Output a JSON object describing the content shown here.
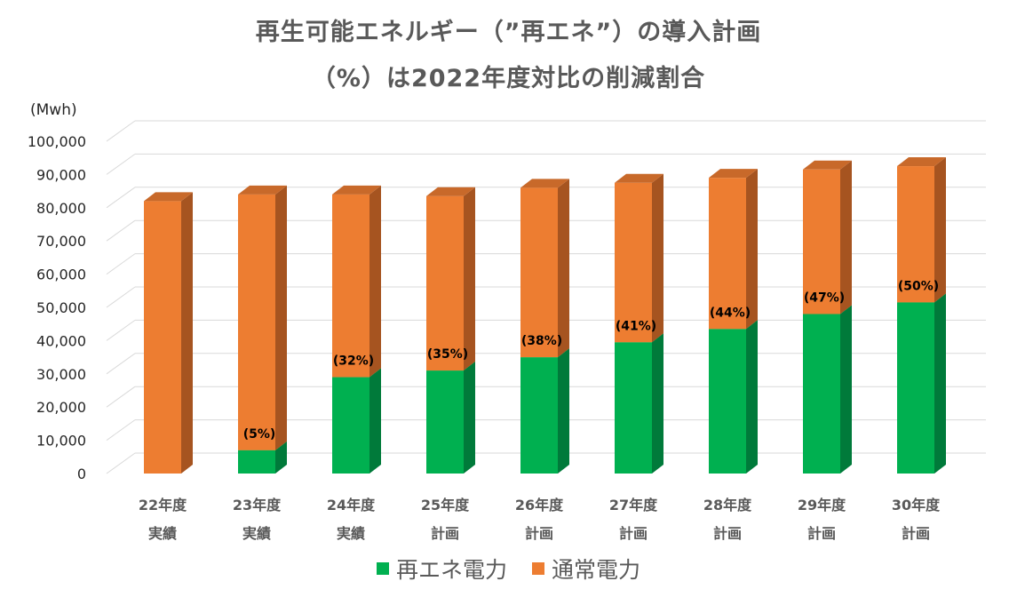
{
  "title_line1": "再生可能エネルギー（”再エネ”）の導入計画",
  "title_line2": "（%）は2022年度対比の削減割合",
  "unit_label": "(Mwh)",
  "colors": {
    "renewable": "#00b050",
    "renewable_side": "#007a3a",
    "renewable_top": "#00c85a",
    "normal": "#ed7d31",
    "normal_side": "#a65420",
    "normal_top": "#c8692a",
    "grid": "#d9d9d9",
    "text": "#595959"
  },
  "chart_data": {
    "type": "bar",
    "stacked": true,
    "categories": [
      [
        "22年度",
        "実績"
      ],
      [
        "23年度",
        "実績"
      ],
      [
        "24年度",
        "実績"
      ],
      [
        "25年度",
        "計画"
      ],
      [
        "26年度",
        "計画"
      ],
      [
        "27年度",
        "計画"
      ],
      [
        "28年度",
        "計画"
      ],
      [
        "29年度",
        "計画"
      ],
      [
        "30年度",
        "計画"
      ]
    ],
    "series": [
      {
        "name": "再エネ電力",
        "values": [
          0,
          7000,
          29000,
          31000,
          35000,
          39500,
          43500,
          48000,
          51500
        ]
      },
      {
        "name": "通常電力",
        "values": [
          82000,
          77000,
          55000,
          52500,
          51000,
          48000,
          45500,
          43500,
          41000
        ]
      }
    ],
    "labels": [
      "",
      "(5%)",
      "(32%)",
      "(35%)",
      "(38%)",
      "(41%)",
      "(44%)",
      "(47%)",
      "(50%)"
    ],
    "ylim": [
      0,
      100000
    ],
    "yticks": [
      "0",
      "10,000",
      "20,000",
      "30,000",
      "40,000",
      "50,000",
      "60,000",
      "70,000",
      "80,000",
      "90,000",
      "100,000"
    ],
    "grid": true,
    "legend_position": "bottom"
  }
}
